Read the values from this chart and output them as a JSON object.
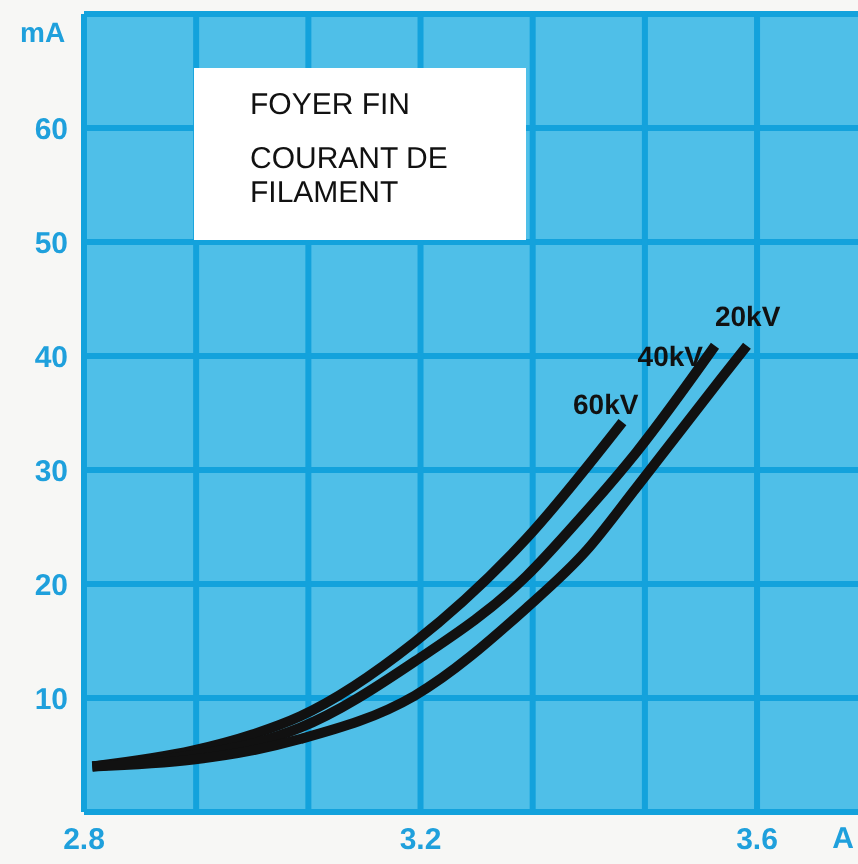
{
  "chart_data": {
    "type": "line",
    "annotations": [
      "FOYER FIN",
      "COURANT DE FILAMENT"
    ],
    "xlabel": "A",
    "ylabel": "mA",
    "series": [
      {
        "name": "60kV",
        "color": "#111111",
        "x": [
          2.81,
          2.93,
          3.0,
          3.057,
          3.193,
          3.326,
          3.44
        ],
        "values": [
          4,
          5.4,
          6.8,
          8.4,
          14.9,
          24.0,
          34.2
        ]
      },
      {
        "name": "40kV",
        "color": "#111111",
        "x": [
          2.81,
          2.93,
          3.0,
          3.057,
          3.193,
          3.326,
          3.39,
          3.457,
          3.55
        ],
        "values": [
          4,
          5.0,
          6.0,
          7.4,
          13.2,
          20.7,
          25.8,
          31.6,
          40.9
        ]
      },
      {
        "name": "20kV",
        "color": "#111111",
        "x": [
          2.81,
          2.93,
          3.0,
          3.057,
          3.193,
          3.326,
          3.398,
          3.457,
          3.557,
          3.588
        ],
        "values": [
          4,
          4.6,
          5.4,
          6.4,
          10.2,
          17.9,
          23.0,
          28.5,
          38.0,
          40.9
        ]
      }
    ],
    "xlim": [
      2.8,
      3.72
    ],
    "ylim": [
      0,
      70
    ],
    "xticks": [
      2.8,
      {
        "value": 2.9333,
        "label": null
      },
      {
        "value": 3.0667,
        "label": null
      },
      3.2,
      {
        "value": 3.3333,
        "label": null
      },
      {
        "value": 3.4667,
        "label": null
      },
      3.6
    ],
    "yticks": [
      {
        "value": 0,
        "label": null
      },
      10,
      20,
      30,
      40,
      50,
      60,
      {
        "value": 70,
        "label": null
      }
    ],
    "grid": true,
    "legend": false,
    "marker": "none",
    "line_style": "solid"
  }
}
